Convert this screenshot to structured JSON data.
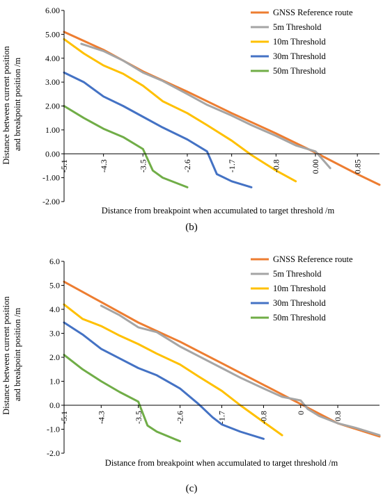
{
  "chart_data": [
    {
      "type": "line",
      "caption": "(b)",
      "xlabel": "Distance from breakpoint when accumulated to target threshold /m",
      "ylabel": [
        "Distance between current position",
        "and breakpoint position /m"
      ],
      "xlim": [
        -5.1,
        1.3
      ],
      "ylim": [
        -2.0,
        6.0
      ],
      "x_ticks": [
        -5.1,
        -4.3,
        -3.5,
        -2.6,
        -1.7,
        -0.8,
        0.0,
        0.85
      ],
      "x_tick_labels": [
        "-5.1",
        "-4.3",
        "-3.5",
        "-2.6",
        "-1.7",
        "-0.8",
        "0.00",
        "0.85"
      ],
      "y_ticks": [
        -2,
        -1,
        0,
        1,
        2,
        3,
        4,
        5,
        6
      ],
      "y_tick_labels": [
        "-2.00",
        "-1.00",
        "0.00",
        "1.00",
        "2.00",
        "3.00",
        "4.00",
        "5.00",
        "6.00"
      ],
      "legend_position": "top-right",
      "series": [
        {
          "name": "GNSS Reference route",
          "color": "#ED7D31",
          "x": [
            -5.1,
            -4.3,
            -3.5,
            -2.6,
            -1.7,
            -0.8,
            0.0,
            0.85,
            1.3
          ],
          "y": [
            5.1,
            4.35,
            3.45,
            2.6,
            1.7,
            0.85,
            0.05,
            -0.85,
            -1.3
          ]
        },
        {
          "name": "5m Threshold",
          "color": "#A5A5A5",
          "x": [
            -4.75,
            -4.3,
            -3.9,
            -3.5,
            -3.1,
            -2.6,
            -2.2,
            -1.7,
            -1.3,
            -0.8,
            -0.4,
            0.0,
            0.15,
            0.3
          ],
          "y": [
            4.6,
            4.3,
            3.9,
            3.4,
            3.05,
            2.5,
            2.05,
            1.6,
            1.2,
            0.75,
            0.35,
            0.1,
            -0.25,
            -0.6
          ]
        },
        {
          "name": "10m Threshold",
          "color": "#FFC000",
          "x": [
            -5.1,
            -4.7,
            -4.3,
            -3.9,
            -3.5,
            -3.1,
            -2.6,
            -2.2,
            -1.7,
            -1.3,
            -0.8,
            -0.4
          ],
          "y": [
            4.8,
            4.2,
            3.7,
            3.35,
            2.85,
            2.2,
            1.7,
            1.2,
            0.55,
            -0.05,
            -0.7,
            -1.15
          ]
        },
        {
          "name": "30m Threshold",
          "color": "#4472C4",
          "x": [
            -5.1,
            -4.7,
            -4.3,
            -3.9,
            -3.5,
            -3.1,
            -2.6,
            -2.2,
            -2.0,
            -1.7,
            -1.3
          ],
          "y": [
            3.4,
            3.0,
            2.4,
            2.0,
            1.55,
            1.1,
            0.6,
            0.1,
            -0.85,
            -1.15,
            -1.4
          ]
        },
        {
          "name": "50m Threshold",
          "color": "#70AD47",
          "x": [
            -5.1,
            -4.7,
            -4.3,
            -3.9,
            -3.5,
            -3.3,
            -3.1,
            -2.6
          ],
          "y": [
            2.0,
            1.5,
            1.05,
            0.7,
            0.2,
            -0.7,
            -1.0,
            -1.4
          ]
        }
      ]
    },
    {
      "type": "line",
      "caption": "(c)",
      "xlabel": "Distance from breakpoint when accumulated to target threshold /m",
      "ylabel": [
        "Distance between current position",
        "and breakpoint position /m"
      ],
      "xlim": [
        -5.1,
        1.7
      ],
      "ylim": [
        -2.0,
        6.0
      ],
      "x_ticks": [
        -5.1,
        -4.3,
        -3.5,
        -2.6,
        -1.7,
        -0.8,
        0.0,
        0.8
      ],
      "x_tick_labels": [
        "-5.1",
        "-4.3",
        "-3.5",
        "-2.6",
        "-1.7",
        "-0.8",
        "0",
        "0.8"
      ],
      "y_ticks": [
        -2,
        -1,
        0,
        1,
        2,
        3,
        4,
        5,
        6
      ],
      "y_tick_labels": [
        "-2.0",
        "-1.0",
        "0.0",
        "1.0",
        "2.0",
        "3.0",
        "4.0",
        "5.0",
        "6.0"
      ],
      "legend_position": "top-right",
      "series": [
        {
          "name": "GNSS Reference route",
          "color": "#ED7D31",
          "x": [
            -5.1,
            -4.3,
            -3.5,
            -2.6,
            -1.7,
            -0.8,
            0.0,
            0.8,
            1.7
          ],
          "y": [
            5.15,
            4.3,
            3.45,
            2.65,
            1.75,
            0.85,
            0.05,
            -0.75,
            -1.3
          ]
        },
        {
          "name": "5m Threshold",
          "color": "#A5A5A5",
          "x": [
            -4.3,
            -3.9,
            -3.5,
            -3.1,
            -2.6,
            -2.2,
            -1.7,
            -1.3,
            -0.8,
            -0.4,
            0.0,
            0.15,
            0.4,
            0.8,
            1.2,
            1.7
          ],
          "y": [
            4.15,
            3.75,
            3.25,
            3.05,
            2.45,
            2.05,
            1.55,
            1.15,
            0.7,
            0.35,
            0.2,
            -0.15,
            -0.45,
            -0.75,
            -0.95,
            -1.25
          ]
        },
        {
          "name": "10m Threshold",
          "color": "#FFC000",
          "x": [
            -5.1,
            -4.7,
            -4.3,
            -3.9,
            -3.5,
            -3.1,
            -2.6,
            -2.2,
            -1.7,
            -1.3,
            -0.8,
            -0.4
          ],
          "y": [
            4.2,
            3.6,
            3.3,
            2.9,
            2.55,
            2.15,
            1.7,
            1.2,
            0.6,
            0.0,
            -0.7,
            -1.25
          ]
        },
        {
          "name": "30m Threshold",
          "color": "#4472C4",
          "x": [
            -5.1,
            -4.7,
            -4.3,
            -3.9,
            -3.5,
            -3.1,
            -2.6,
            -2.2,
            -1.9,
            -1.7,
            -1.3,
            -0.8
          ],
          "y": [
            3.45,
            2.95,
            2.35,
            1.95,
            1.55,
            1.25,
            0.7,
            0.05,
            -0.5,
            -0.8,
            -1.1,
            -1.4
          ]
        },
        {
          "name": "50m Threshold",
          "color": "#70AD47",
          "x": [
            -5.1,
            -4.7,
            -4.3,
            -3.9,
            -3.5,
            -3.3,
            -3.1,
            -2.6
          ],
          "y": [
            2.1,
            1.5,
            1.0,
            0.55,
            0.15,
            -0.85,
            -1.1,
            -1.5
          ]
        }
      ]
    }
  ]
}
